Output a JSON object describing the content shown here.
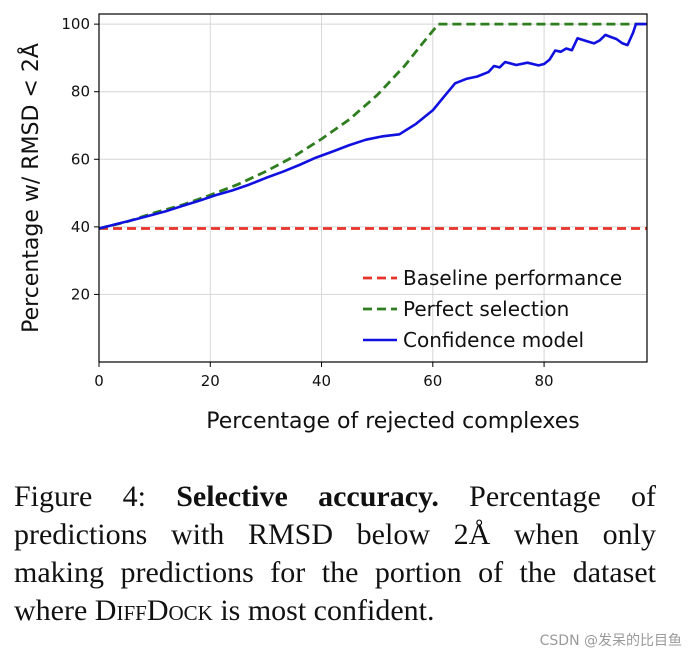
{
  "chart_data": {
    "type": "line",
    "xlabel": "Percentage of rejected complexes",
    "ylabel": "Percentage w/ RMSD < 2Å",
    "xlim": [
      0,
      98.5
    ],
    "ylim": [
      0,
      103
    ],
    "xticks": [
      0,
      20,
      40,
      60,
      80
    ],
    "yticks": [
      20,
      40,
      60,
      80,
      100
    ],
    "grid": true,
    "legend_position": "bottom-right",
    "series": [
      {
        "name": "Baseline performance",
        "style": "dashed",
        "color": "#e8322a",
        "x": [
          0,
          98.5
        ],
        "y": [
          39.5,
          39.5
        ]
      },
      {
        "name": "Perfect selection",
        "style": "dashed",
        "color": "#2e7d1f",
        "x": [
          0,
          5,
          10,
          15,
          20,
          25,
          30,
          35,
          40,
          45,
          50,
          55,
          58,
          61,
          65,
          70,
          80,
          90,
          98.5
        ],
        "y": [
          39.5,
          41.5,
          44.2,
          46.5,
          49.4,
          52.6,
          56.4,
          60.8,
          66,
          71.8,
          79,
          87.8,
          94,
          100,
          100,
          100,
          100,
          100,
          100
        ]
      },
      {
        "name": "Confidence model",
        "style": "solid",
        "color": "#1010e0",
        "x": [
          0,
          3,
          6,
          9,
          12,
          15,
          18,
          21,
          24,
          27,
          30,
          33,
          36,
          39,
          42,
          45,
          48,
          51,
          54,
          57,
          60,
          62,
          64,
          66,
          68,
          70,
          71,
          72,
          73,
          75,
          77,
          79,
          80,
          81,
          82,
          83,
          84,
          85,
          86,
          87,
          88,
          89,
          90,
          91,
          92,
          93,
          94,
          95,
          96,
          96.5,
          97,
          98.5
        ],
        "y": [
          39.5,
          40.8,
          42,
          43.3,
          44.6,
          46.2,
          47.7,
          49.4,
          50.8,
          52.5,
          54.5,
          56.3,
          58.3,
          60.5,
          62.3,
          64.2,
          65.8,
          66.8,
          67.4,
          70.5,
          74.5,
          78.5,
          82.5,
          83.8,
          84.5,
          85.8,
          87.6,
          87.2,
          88.8,
          87.9,
          88.6,
          87.8,
          88.2,
          89.5,
          92.2,
          91.8,
          92.8,
          92.3,
          95.8,
          95.3,
          94.8,
          94.3,
          95.2,
          96.8,
          96.2,
          95.6,
          94.4,
          93.8,
          97.5,
          100,
          100,
          100
        ]
      }
    ]
  },
  "caption": {
    "figure_label": "Figure 4:",
    "bold_title": "Selective accuracy.",
    "body_part1": "Percentage of predictions with RMSD below 2Å when only making predictions for the portion of the dataset where",
    "method_name": "DiffDock",
    "body_part2": "is most confident."
  },
  "watermark": "CSDN @发呆的比目鱼"
}
